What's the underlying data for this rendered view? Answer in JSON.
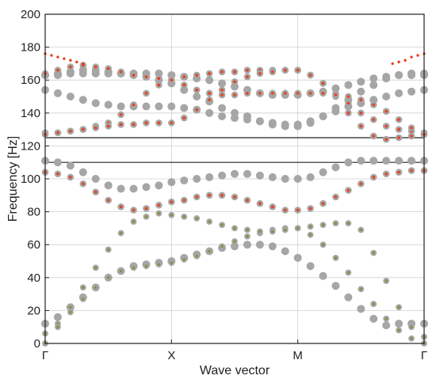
{
  "chart_data": {
    "type": "scatter",
    "title": "",
    "xlabel": "Wave vector",
    "ylabel": "Frequency [Hz]",
    "ylim": [
      0,
      200
    ],
    "yticks": [
      0,
      20,
      40,
      60,
      80,
      100,
      120,
      140,
      160,
      180,
      200
    ],
    "xticks": [
      "Γ",
      "X",
      "M",
      "Γ"
    ],
    "grid": true,
    "bandgap_lines_hz": [
      110,
      125
    ],
    "colors": {
      "grey": "#a6a6a6",
      "red": "#e8401c",
      "olive": "#8a8f3c",
      "frame": "#222222",
      "grid": "#d0d0d0"
    },
    "series": [
      {
        "style": "grey-large",
        "x": [
          0,
          0.1,
          0.2,
          0.3,
          0.4,
          0.5,
          0.6,
          0.7,
          0.8,
          0.9,
          1.0,
          1.1,
          1.2,
          1.3,
          1.4,
          1.5,
          1.6,
          1.7,
          1.8,
          1.9,
          2.0,
          2.1,
          2.2,
          2.3,
          2.4,
          2.5,
          2.6,
          2.7,
          2.8,
          2.9,
          3.0
        ],
        "y": [
          111,
          110,
          108,
          104,
          100,
          96,
          94,
          94,
          95,
          96,
          98,
          99,
          100,
          101,
          102,
          103,
          103,
          102,
          101,
          100,
          100,
          101,
          104,
          107,
          110,
          111,
          111,
          111,
          111,
          111,
          111
        ]
      },
      {
        "style": "grey-large",
        "x": [
          0,
          0.1,
          0.2,
          0.3,
          0.4,
          0.5,
          0.6,
          0.7,
          0.8,
          0.9,
          1.0,
          1.1,
          1.2,
          1.3,
          1.4,
          1.5,
          1.6,
          1.7,
          1.8,
          1.9,
          2.0,
          2.1,
          2.2,
          2.3,
          2.4,
          2.5,
          2.6,
          2.7,
          2.8,
          2.9,
          3.0
        ],
        "y": [
          12,
          16,
          22,
          28,
          34,
          40,
          44,
          47,
          48,
          49,
          50,
          52,
          54,
          56,
          58,
          59,
          60,
          60,
          59,
          56,
          52,
          47,
          41,
          35,
          28,
          21,
          15,
          11,
          12,
          12,
          12
        ]
      },
      {
        "style": "grey-large",
        "x": [
          0,
          0.1,
          0.2,
          0.3,
          0.4,
          0.5,
          0.6,
          0.7,
          0.8,
          0.9,
          1.0,
          1.1,
          1.2,
          1.3,
          1.4,
          1.5,
          1.6,
          1.7,
          1.8,
          1.9,
          2.0,
          2.1,
          2.2,
          2.3,
          2.4,
          2.5,
          2.6,
          2.7,
          2.8,
          2.9,
          3.0
        ],
        "y": [
          163,
          164,
          165,
          166,
          166,
          165,
          164,
          163,
          162,
          160,
          158,
          154,
          150,
          147,
          143,
          140,
          138,
          135,
          133,
          132,
          132,
          134,
          138,
          143,
          148,
          153,
          157,
          161,
          163,
          164,
          164
        ]
      },
      {
        "style": "grey-large",
        "x": [
          0,
          0.1,
          0.2,
          0.3,
          0.4,
          0.5,
          0.6,
          0.7,
          0.8,
          0.9,
          1.0,
          1.1,
          1.2,
          1.3,
          1.4,
          1.5,
          1.6,
          1.7,
          1.8,
          1.9,
          2.0,
          2.1,
          2.2,
          2.3,
          2.4,
          2.5,
          2.6,
          2.7,
          2.8,
          2.9,
          3.0
        ],
        "y": [
          154,
          152,
          150,
          148,
          146,
          145,
          144,
          144,
          144,
          144,
          144,
          143,
          142,
          140,
          138,
          137,
          136,
          135,
          134,
          133,
          133,
          135,
          138,
          141,
          144,
          146,
          148,
          150,
          152,
          153,
          154
        ]
      },
      {
        "style": "grey-large",
        "x": [
          0,
          0.1,
          0.2,
          0.3,
          0.4,
          0.5,
          0.6,
          0.7,
          0.8,
          0.9,
          1.0,
          1.1,
          1.2,
          1.3,
          1.4,
          1.5,
          1.6,
          1.7,
          1.8,
          1.9,
          2.0,
          2.1,
          2.2,
          2.3,
          2.4,
          2.5,
          2.6,
          2.7,
          2.8,
          2.9,
          3.0
        ],
        "y": [
          163,
          163,
          164,
          164,
          164,
          164,
          164,
          164,
          164,
          164,
          163,
          162,
          161,
          160,
          158,
          156,
          154,
          152,
          151,
          151,
          151,
          152,
          153,
          155,
          157,
          159,
          161,
          162,
          163,
          163,
          163
        ]
      },
      {
        "style": "grey-red",
        "x": [
          0,
          0.1,
          0.2,
          0.3,
          0.4,
          0.5,
          0.6,
          0.7,
          0.8,
          0.9,
          1.0,
          1.1,
          1.2,
          1.3,
          1.4,
          1.5,
          1.6,
          1.7,
          1.8,
          1.9,
          2.0,
          2.1,
          2.2,
          2.3,
          2.4,
          2.5,
          2.6,
          2.7,
          2.8,
          2.9,
          3.0
        ],
        "y": [
          104,
          103,
          101,
          97,
          92,
          87,
          83,
          81,
          82,
          84,
          86,
          87,
          89,
          90,
          90,
          89,
          87,
          85,
          83,
          81,
          81,
          82,
          85,
          89,
          93,
          97,
          101,
          103,
          104,
          105,
          105
        ]
      },
      {
        "style": "grey-red",
        "x": [
          0,
          0.1,
          0.2,
          0.3,
          0.4,
          0.5,
          0.6,
          0.7,
          0.8,
          0.9,
          1.0,
          1.1,
          1.2,
          1.3,
          1.4,
          1.5,
          1.6,
          1.7,
          1.8,
          1.9,
          2.0,
          2.1,
          2.2,
          2.3,
          2.4,
          2.5,
          2.6,
          2.7,
          2.8,
          2.9,
          3.0
        ],
        "y": [
          128,
          128,
          129,
          130,
          132,
          134,
          139,
          145,
          152,
          157,
          160,
          162,
          163,
          164,
          165,
          165,
          166,
          166,
          166,
          166,
          166,
          163,
          158,
          150,
          140,
          132,
          126,
          124,
          125,
          126,
          127
        ]
      },
      {
        "style": "grey-red",
        "x": [
          0,
          0.1,
          0.2,
          0.3,
          0.4,
          0.5,
          0.6,
          0.7,
          0.8,
          0.9,
          1.0,
          1.1,
          1.2,
          1.3,
          1.4,
          1.5,
          1.6,
          1.7,
          1.8,
          1.9,
          2.0,
          2.1,
          2.2,
          2.3,
          2.4,
          2.5,
          2.6,
          2.7,
          2.8,
          2.9,
          3.0
        ],
        "y": [
          127,
          128,
          129,
          130,
          131,
          132,
          133,
          133,
          134,
          134,
          134,
          137,
          142,
          148,
          154,
          159,
          162,
          164,
          165,
          166,
          166,
          163,
          158,
          152,
          146,
          140,
          136,
          132,
          130,
          129,
          128
        ]
      },
      {
        "style": "grey-red",
        "x": [
          0,
          0.1,
          0.2,
          0.3,
          0.4,
          0.5,
          0.6,
          0.7,
          0.8,
          0.9,
          1.0,
          1.1,
          1.2,
          1.3,
          1.4,
          1.5,
          1.6,
          1.7,
          1.8,
          1.9,
          2.0,
          2.1,
          2.2,
          2.3,
          2.4,
          2.5,
          2.6,
          2.7,
          2.8,
          2.9,
          3.0
        ],
        "y": [
          164,
          166,
          168,
          169,
          168,
          167,
          165,
          163,
          162,
          161,
          160,
          157,
          154,
          152,
          151,
          151,
          152,
          152,
          152,
          152,
          152,
          152,
          152,
          151,
          150,
          148,
          145,
          141,
          136,
          131,
          127
        ]
      },
      {
        "style": "grey-olive",
        "x": [
          0,
          0.1,
          0.2,
          0.3,
          0.4,
          0.5,
          0.6,
          0.7,
          0.8,
          0.9,
          1.0,
          1.1,
          1.2,
          1.3,
          1.4,
          1.5,
          1.6,
          1.7,
          1.8,
          1.9,
          2.0,
          2.1,
          2.2,
          2.3,
          2.4,
          2.5,
          2.6,
          2.7,
          2.8,
          2.9,
          3.0
        ],
        "y": [
          6,
          12,
          19,
          27,
          34,
          40,
          44,
          46,
          47,
          48,
          49,
          51,
          53,
          56,
          59,
          62,
          65,
          67,
          69,
          70,
          70,
          71,
          72,
          73,
          73,
          69,
          55,
          38,
          22,
          10,
          4
        ]
      },
      {
        "style": "grey-olive",
        "x": [
          0,
          0.1,
          0.2,
          0.3,
          0.4,
          0.5,
          0.6,
          0.7,
          0.8,
          0.9,
          1.0,
          1.1,
          1.2,
          1.3,
          1.4,
          1.5,
          1.6,
          1.7,
          1.8,
          1.9,
          2.0,
          2.1,
          2.2,
          2.3,
          2.4,
          2.5,
          2.6,
          2.7,
          2.8,
          2.9,
          3.0
        ],
        "y": [
          0,
          10,
          22,
          34,
          46,
          57,
          67,
          74,
          77,
          79,
          78,
          77,
          76,
          74,
          72,
          70,
          69,
          68,
          68,
          69,
          70,
          66,
          60,
          52,
          43,
          33,
          24,
          15,
          8,
          3,
          0
        ]
      },
      {
        "style": "red-small",
        "x": [
          0,
          0.05,
          0.1,
          0.15,
          0.2,
          0.25,
          0.3,
          2.75,
          2.8,
          2.85,
          2.9,
          2.95,
          3.0
        ],
        "y": [
          176,
          175,
          174,
          173,
          172,
          171,
          170,
          170,
          171,
          172,
          174,
          175,
          176
        ]
      }
    ]
  }
}
